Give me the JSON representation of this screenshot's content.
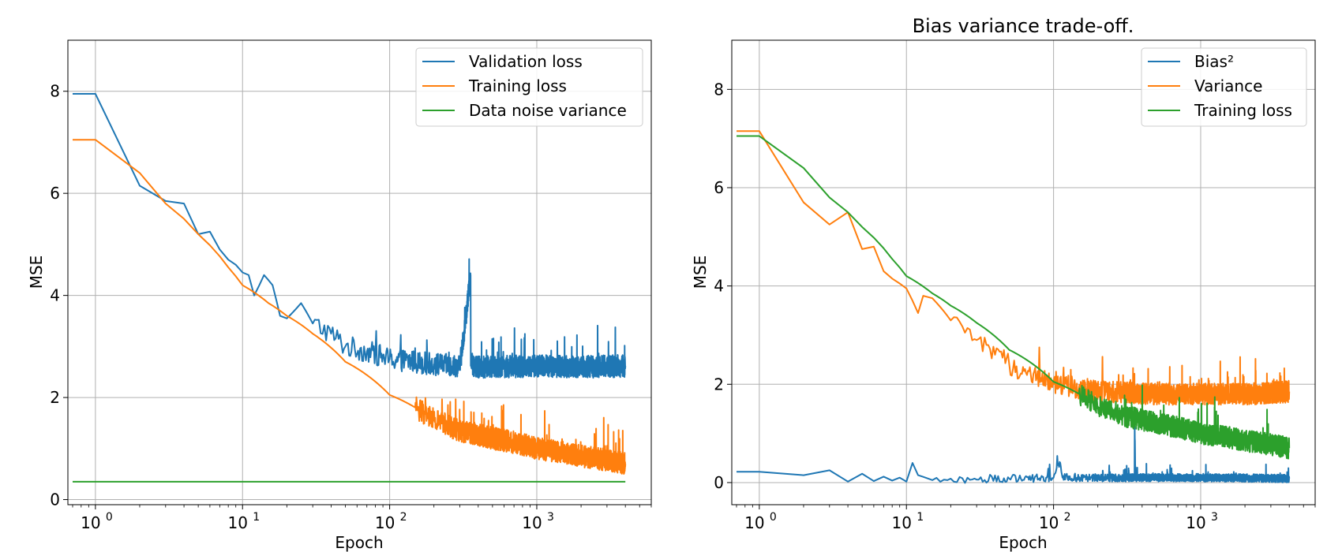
{
  "chart_data": [
    {
      "type": "line",
      "title": "",
      "xlabel": "Epoch",
      "ylabel": "MSE",
      "xscale": "log",
      "xlim": [
        0.65,
        6000
      ],
      "ylim": [
        -0.1,
        9.0
      ],
      "xticks": [
        1,
        10,
        100,
        1000
      ],
      "xtick_labels": [
        [
          "10",
          "0"
        ],
        [
          "10",
          "1"
        ],
        [
          "10",
          "2"
        ],
        [
          "10",
          "3"
        ]
      ],
      "yticks": [
        0,
        2,
        4,
        6,
        8
      ],
      "ytick_labels": [
        "0",
        "2",
        "4",
        "6",
        "8"
      ],
      "grid": true,
      "legend_position": "upper right",
      "series": [
        {
          "name": "Validation loss",
          "color": "#1f77b4",
          "x": [
            0,
            1,
            2,
            3,
            4,
            5,
            6,
            7,
            8,
            9,
            10,
            11,
            12,
            14,
            16,
            18,
            20,
            25,
            30,
            40,
            50,
            70,
            100,
            200,
            300,
            355,
            356,
            360,
            500,
            1000,
            2000,
            4000
          ],
          "y": [
            7.95,
            7.95,
            6.15,
            5.85,
            5.8,
            5.2,
            5.25,
            4.9,
            4.7,
            4.6,
            4.45,
            4.4,
            4.0,
            4.4,
            4.2,
            3.6,
            3.55,
            3.85,
            3.45,
            3.25,
            3.0,
            2.9,
            2.75,
            2.65,
            2.62,
            4.4,
            2.62,
            2.6,
            2.6,
            2.62,
            2.6,
            2.62
          ],
          "noise_start": 30,
          "noise_amp": 0.22
        },
        {
          "name": "Training loss",
          "color": "#ff7f0e",
          "x": [
            0,
            1,
            2,
            3,
            5,
            8,
            10,
            15,
            20,
            30,
            50,
            100,
            200,
            300,
            500,
            1000,
            2000,
            4000
          ],
          "y": [
            7.05,
            7.05,
            6.4,
            5.8,
            5.2,
            4.55,
            4.2,
            3.85,
            3.6,
            3.25,
            2.7,
            2.05,
            1.55,
            1.35,
            1.2,
            1.0,
            0.85,
            0.7
          ],
          "noise_start": 150,
          "noise_amp": 0.22
        },
        {
          "name": "Data noise variance",
          "color": "#2ca02c",
          "x": [
            0,
            4000
          ],
          "y": [
            0.35,
            0.35
          ],
          "noise_start": 0,
          "noise_amp": 0
        }
      ]
    },
    {
      "type": "line",
      "title": "Bias variance trade-off.",
      "xlabel": "Epoch",
      "ylabel": "MSE",
      "xscale": "log",
      "xlim": [
        0.65,
        6000
      ],
      "ylim": [
        -0.45,
        9.0
      ],
      "xticks": [
        1,
        10,
        100,
        1000
      ],
      "xtick_labels": [
        [
          "10",
          "0"
        ],
        [
          "10",
          "1"
        ],
        [
          "10",
          "2"
        ],
        [
          "10",
          "3"
        ]
      ],
      "yticks": [
        0,
        2,
        4,
        6,
        8
      ],
      "ytick_labels": [
        "0",
        "2",
        "4",
        "6",
        "8"
      ],
      "grid": true,
      "legend_position": "upper right",
      "series": [
        {
          "name": "Bias²",
          "color": "#1f77b4",
          "x": [
            0,
            1,
            2,
            3,
            4,
            5,
            6,
            7,
            8,
            9,
            10,
            11,
            12,
            15,
            20,
            30,
            50,
            100,
            110,
            115,
            200,
            355,
            356,
            360,
            1000,
            4000
          ],
          "y": [
            0.22,
            0.22,
            0.15,
            0.25,
            0.02,
            0.18,
            0.03,
            0.12,
            0.04,
            0.1,
            0.02,
            0.4,
            0.15,
            0.05,
            0.08,
            0.06,
            0.08,
            0.1,
            0.42,
            0.1,
            0.1,
            0.1,
            1.15,
            0.1,
            0.1,
            0.08
          ],
          "noise_start": 15,
          "noise_amp": 0.08
        },
        {
          "name": "Variance",
          "color": "#ff7f0e",
          "x": [
            0,
            1,
            2,
            3,
            4,
            5,
            6,
            7,
            8,
            10,
            12,
            13,
            15,
            20,
            25,
            30,
            40,
            50,
            70,
            100,
            200,
            500,
            1000,
            2000,
            4000
          ],
          "y": [
            7.15,
            7.15,
            5.7,
            5.25,
            5.5,
            4.75,
            4.8,
            4.3,
            4.15,
            3.95,
            3.45,
            3.8,
            3.75,
            3.3,
            3.05,
            2.9,
            2.6,
            2.4,
            2.2,
            2.0,
            1.85,
            1.8,
            1.8,
            1.8,
            1.85
          ],
          "noise_start": 20,
          "noise_amp": 0.22
        },
        {
          "name": "Training loss",
          "color": "#2ca02c",
          "x": [
            0,
            1,
            2,
            3,
            5,
            8,
            10,
            15,
            20,
            30,
            50,
            100,
            200,
            300,
            500,
            1000,
            2000,
            4000
          ],
          "y": [
            7.05,
            7.05,
            6.4,
            5.8,
            5.2,
            4.55,
            4.2,
            3.85,
            3.6,
            3.25,
            2.7,
            2.05,
            1.55,
            1.35,
            1.2,
            1.0,
            0.85,
            0.7
          ],
          "noise_start": 150,
          "noise_amp": 0.22
        }
      ]
    }
  ]
}
